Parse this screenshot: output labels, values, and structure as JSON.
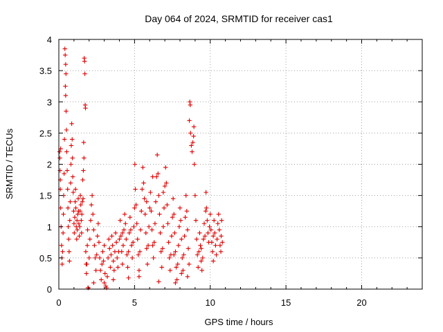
{
  "chart_data": {
    "type": "scatter",
    "title": "Day 064 of 2024, SRMTID for receiver cas1",
    "xlabel": "GPS time / hours",
    "ylabel": "SRMTID / TECUs",
    "xlim": [
      0,
      24
    ],
    "ylim": [
      0,
      4
    ],
    "x_ticks": [
      0,
      5,
      10,
      15,
      20
    ],
    "y_ticks": [
      0,
      0.5,
      1,
      1.5,
      2,
      2.5,
      3,
      3.5,
      4
    ],
    "x_tick_labels": [
      "0",
      "5",
      "10",
      "15",
      "20"
    ],
    "y_tick_labels": [
      "0",
      "0.5",
      "1",
      "1.5",
      "2",
      "2.5",
      "3",
      "3.5",
      "4"
    ],
    "grid": true,
    "marker": "+",
    "marker_color": "#e00000",
    "series": [
      {
        "name": "SRMTID",
        "points": [
          [
            0.05,
            2.2
          ],
          [
            0.07,
            2.1
          ],
          [
            0.08,
            1.9
          ],
          [
            0.1,
            1.6
          ],
          [
            0.12,
            1.3
          ],
          [
            0.15,
            1.0
          ],
          [
            0.18,
            0.7
          ],
          [
            0.2,
            0.5
          ],
          [
            0.22,
            0.4
          ],
          [
            0.25,
            0.6
          ],
          [
            0.1,
            1.75
          ],
          [
            0.12,
            2.25
          ],
          [
            0.28,
            0.9
          ],
          [
            0.3,
            1.2
          ],
          [
            0.32,
            1.5
          ],
          [
            0.35,
            1.85
          ],
          [
            0.37,
            2.4
          ],
          [
            0.4,
            3.85
          ],
          [
            0.42,
            3.75
          ],
          [
            0.45,
            3.6
          ],
          [
            0.47,
            3.45
          ],
          [
            0.43,
            3.25
          ],
          [
            0.45,
            3.1
          ],
          [
            0.48,
            2.85
          ],
          [
            0.5,
            2.55
          ],
          [
            0.52,
            2.2
          ],
          [
            0.55,
            1.9
          ],
          [
            0.58,
            1.6
          ],
          [
            0.6,
            1.3
          ],
          [
            0.62,
            1.0
          ],
          [
            0.65,
            0.8
          ],
          [
            0.68,
            0.6
          ],
          [
            0.7,
            0.45
          ],
          [
            0.72,
            1.1
          ],
          [
            0.75,
            1.4
          ],
          [
            0.78,
            1.7
          ],
          [
            0.8,
            2.0
          ],
          [
            0.82,
            2.3
          ],
          [
            0.85,
            2.65
          ],
          [
            0.88,
            2.4
          ],
          [
            0.9,
            2.1
          ],
          [
            0.92,
            1.8
          ],
          [
            0.95,
            1.55
          ],
          [
            0.98,
            1.25
          ],
          [
            1.0,
            1.05
          ],
          [
            1.02,
            0.9
          ],
          [
            1.05,
            1.15
          ],
          [
            1.08,
            1.4
          ],
          [
            1.1,
            1.6
          ],
          [
            1.12,
            1.3
          ],
          [
            1.15,
            1.0
          ],
          [
            1.18,
            0.8
          ],
          [
            1.2,
            1.1
          ],
          [
            1.22,
            0.95
          ],
          [
            1.25,
            1.2
          ],
          [
            1.28,
            1.45
          ],
          [
            1.3,
            1.25
          ],
          [
            1.32,
            1.05
          ],
          [
            1.35,
            0.85
          ],
          [
            1.38,
            1.0
          ],
          [
            1.4,
            1.25
          ],
          [
            1.42,
            1.5
          ],
          [
            1.45,
            1.35
          ],
          [
            1.48,
            1.1
          ],
          [
            1.5,
            0.9
          ],
          [
            1.52,
            1.2
          ],
          [
            1.55,
            1.4
          ],
          [
            1.58,
            1.75
          ],
          [
            1.6,
            1.45
          ],
          [
            1.62,
            1.9
          ],
          [
            1.64,
            2.35
          ],
          [
            1.66,
            2.1
          ],
          [
            1.68,
            3.7
          ],
          [
            1.7,
            3.65
          ],
          [
            1.72,
            3.45
          ],
          [
            1.74,
            2.95
          ],
          [
            1.76,
            2.9
          ],
          [
            1.78,
            0.6
          ],
          [
            1.8,
            0.4
          ],
          [
            1.82,
            0.25
          ],
          [
            1.85,
            0.4
          ],
          [
            1.88,
            0.7
          ],
          [
            1.9,
            0.95
          ],
          [
            1.92,
            0.02
          ],
          [
            1.95,
            0.02
          ],
          [
            2.0,
            0.5
          ],
          [
            2.05,
            0.8
          ],
          [
            2.1,
            1.1
          ],
          [
            2.15,
            1.35
          ],
          [
            2.2,
            1.5
          ],
          [
            2.25,
            1.2
          ],
          [
            2.3,
            0.95
          ],
          [
            2.35,
            0.7
          ],
          [
            2.4,
            0.5
          ],
          [
            2.45,
            0.3
          ],
          [
            2.5,
            0.55
          ],
          [
            2.55,
            0.85
          ],
          [
            2.6,
            1.05
          ],
          [
            2.65,
            0.75
          ],
          [
            2.7,
            0.5
          ],
          [
            2.75,
            0.3
          ],
          [
            2.8,
            0.15
          ],
          [
            2.85,
            0.4
          ],
          [
            2.9,
            0.6
          ],
          [
            2.95,
            0.45
          ],
          [
            3.0,
            0.7
          ],
          [
            3.05,
            0.25
          ],
          [
            3.1,
            0.05
          ],
          [
            3.15,
            0.02
          ],
          [
            3.2,
            0.2
          ],
          [
            3.25,
            0.5
          ],
          [
            3.3,
            0.8
          ],
          [
            3.35,
            0.65
          ],
          [
            3.4,
            0.35
          ],
          [
            3.45,
            0.55
          ],
          [
            3.5,
            0.85
          ],
          [
            3.55,
            0.7
          ],
          [
            3.6,
            0.45
          ],
          [
            3.65,
            0.3
          ],
          [
            3.7,
            0.6
          ],
          [
            3.75,
            0.9
          ],
          [
            3.8,
            0.75
          ],
          [
            3.85,
            0.5
          ],
          [
            3.9,
            0.35
          ],
          [
            3.95,
            0.6
          ],
          [
            4.0,
            0.8
          ],
          [
            4.05,
            1.1
          ],
          [
            4.1,
            0.85
          ],
          [
            4.15,
            0.6
          ],
          [
            4.2,
            0.4
          ],
          [
            4.25,
            0.7
          ],
          [
            4.3,
            0.95
          ],
          [
            4.35,
            1.2
          ],
          [
            4.4,
            1.05
          ],
          [
            4.45,
            0.8
          ],
          [
            4.5,
            0.55
          ],
          [
            4.55,
            0.35
          ],
          [
            4.6,
            0.6
          ],
          [
            4.65,
            0.9
          ],
          [
            4.7,
            1.15
          ],
          [
            4.75,
            0.95
          ],
          [
            4.8,
            0.7
          ],
          [
            4.85,
            0.5
          ],
          [
            4.9,
            0.75
          ],
          [
            4.95,
            1.0
          ],
          [
            5.0,
            1.3
          ],
          [
            5.02,
            2.0
          ],
          [
            5.05,
            1.6
          ],
          [
            5.1,
            1.35
          ],
          [
            5.15,
            1.05
          ],
          [
            5.2,
            0.8
          ],
          [
            5.25,
            0.55
          ],
          [
            5.3,
            0.3
          ],
          [
            5.35,
            0.6
          ],
          [
            5.4,
            0.95
          ],
          [
            5.45,
            1.25
          ],
          [
            5.5,
            1.6
          ],
          [
            5.55,
            1.95
          ],
          [
            5.6,
            1.7
          ],
          [
            5.65,
            1.45
          ],
          [
            5.7,
            1.2
          ],
          [
            5.75,
            0.9
          ],
          [
            5.8,
            0.65
          ],
          [
            5.85,
            0.4
          ],
          [
            5.9,
            0.7
          ],
          [
            5.95,
            1.0
          ],
          [
            6.0,
            1.3
          ],
          [
            6.05,
            1.55
          ],
          [
            6.1,
            1.25
          ],
          [
            6.15,
            0.95
          ],
          [
            6.2,
            0.7
          ],
          [
            6.25,
            0.5
          ],
          [
            6.3,
            0.75
          ],
          [
            6.35,
            1.05
          ],
          [
            6.4,
            1.4
          ],
          [
            6.45,
            1.8
          ],
          [
            6.5,
            2.15
          ],
          [
            6.55,
            1.85
          ],
          [
            6.6,
            1.5
          ],
          [
            6.65,
            1.2
          ],
          [
            6.7,
            0.9
          ],
          [
            6.75,
            0.6
          ],
          [
            6.8,
            0.35
          ],
          [
            6.85,
            0.65
          ],
          [
            6.9,
            1.0
          ],
          [
            6.95,
            1.3
          ],
          [
            7.0,
            1.65
          ],
          [
            7.05,
            1.95
          ],
          [
            7.1,
            1.7
          ],
          [
            7.15,
            1.35
          ],
          [
            7.2,
            1.05
          ],
          [
            7.25,
            0.75
          ],
          [
            7.3,
            0.5
          ],
          [
            7.35,
            0.3
          ],
          [
            7.4,
            0.55
          ],
          [
            7.45,
            0.85
          ],
          [
            7.5,
            1.15
          ],
          [
            7.55,
            1.45
          ],
          [
            7.6,
            1.2
          ],
          [
            7.65,
            0.9
          ],
          [
            7.7,
            0.6
          ],
          [
            7.75,
            0.35
          ],
          [
            7.8,
            0.15
          ],
          [
            7.85,
            0.4
          ],
          [
            7.9,
            0.7
          ],
          [
            7.95,
            1.0
          ],
          [
            8.0,
            1.3
          ],
          [
            8.05,
            1.1
          ],
          [
            8.1,
            0.8
          ],
          [
            8.15,
            0.5
          ],
          [
            8.2,
            0.3
          ],
          [
            8.25,
            0.55
          ],
          [
            8.3,
            0.85
          ],
          [
            8.35,
            1.15
          ],
          [
            8.4,
            1.5
          ],
          [
            8.45,
            1.25
          ],
          [
            8.5,
            0.95
          ],
          [
            8.55,
            0.65
          ],
          [
            8.6,
            0.4
          ],
          [
            8.62,
            2.7
          ],
          [
            8.65,
            3.0
          ],
          [
            8.68,
            2.95
          ],
          [
            8.7,
            2.5
          ],
          [
            8.75,
            2.3
          ],
          [
            8.8,
            2.2
          ],
          [
            8.85,
            2.35
          ],
          [
            8.9,
            2.45
          ],
          [
            8.92,
            2.6
          ],
          [
            8.95,
            2.0
          ],
          [
            9.0,
            1.5
          ],
          [
            9.05,
            1.1
          ],
          [
            9.1,
            0.8
          ],
          [
            9.15,
            0.55
          ],
          [
            9.2,
            0.35
          ],
          [
            9.25,
            0.6
          ],
          [
            9.3,
            0.9
          ],
          [
            9.35,
            0.7
          ],
          [
            9.4,
            0.45
          ],
          [
            9.45,
            0.3
          ],
          [
            9.5,
            0.5
          ],
          [
            9.55,
            0.8
          ],
          [
            9.6,
            1.05
          ],
          [
            9.65,
            0.85
          ],
          [
            9.7,
            1.25
          ],
          [
            9.72,
            1.55
          ],
          [
            9.75,
            1.3
          ],
          [
            9.8,
            1.1
          ],
          [
            9.85,
            0.9
          ],
          [
            9.9,
            0.75
          ],
          [
            9.95,
            1.0
          ],
          [
            10.0,
            1.2
          ],
          [
            10.05,
            0.95
          ],
          [
            10.1,
            0.75
          ],
          [
            10.15,
            0.6
          ],
          [
            10.2,
            0.85
          ],
          [
            10.25,
            1.1
          ],
          [
            10.3,
            0.9
          ],
          [
            10.35,
            0.7
          ],
          [
            10.4,
            0.55
          ],
          [
            10.45,
            0.8
          ],
          [
            10.5,
            1.05
          ],
          [
            10.55,
            1.2
          ],
          [
            10.6,
            0.95
          ],
          [
            10.65,
            0.7
          ],
          [
            10.7,
            0.6
          ],
          [
            10.72,
            0.85
          ],
          [
            10.75,
            1.1
          ],
          [
            10.8,
            0.75
          ],
          [
            2.3,
            0.1
          ],
          [
            3.6,
            0.15
          ],
          [
            4.6,
            0.18
          ],
          [
            6.6,
            0.12
          ],
          [
            7.7,
            0.1
          ],
          [
            8.5,
            0.2
          ],
          [
            5.3,
            0.2
          ],
          [
            3.0,
            0.1
          ],
          [
            4.2,
            0.9
          ],
          [
            5.8,
            1.4
          ],
          [
            6.2,
            1.8
          ],
          [
            6.9,
            1.55
          ],
          [
            7.6,
            0.55
          ],
          [
            8.1,
            0.25
          ],
          [
            9.4,
            0.65
          ],
          [
            10.2,
            0.45
          ]
        ]
      }
    ]
  }
}
